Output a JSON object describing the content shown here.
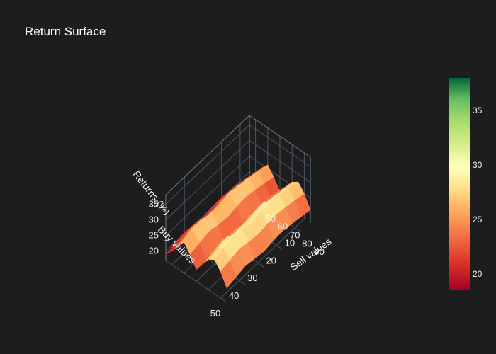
{
  "chart_data": {
    "type": "surface",
    "title": "Return Surface",
    "x_axis": {
      "title": "Buy values",
      "ticks": [
        10,
        20,
        30,
        40,
        50
      ],
      "range": [
        5,
        50
      ]
    },
    "y_axis": {
      "title": "Sell values",
      "ticks": [
        50,
        60,
        70,
        80,
        90
      ],
      "range": [
        45,
        95
      ]
    },
    "z_axis": {
      "title": "Returns (%)",
      "ticks": [
        20,
        25,
        30,
        35
      ],
      "range": [
        17,
        38
      ]
    },
    "surface": {
      "buy_values": [
        5,
        10,
        15,
        20,
        25,
        30,
        35,
        40,
        45,
        50
      ],
      "sell_values": [
        45,
        50,
        55,
        60,
        65,
        70,
        75,
        80,
        85,
        90,
        95
      ],
      "z": [
        [
          18.6,
          20.8,
          23.9,
          26.2,
          23.6,
          20.4,
          23.2,
          26.0,
          27.4,
          25.0,
          21.2
        ],
        [
          19.2,
          21.5,
          24.6,
          27.0,
          24.4,
          21.0,
          24.0,
          26.8,
          28.1,
          25.6,
          21.8
        ],
        [
          19.8,
          22.3,
          25.4,
          27.8,
          25.1,
          21.6,
          24.8,
          27.6,
          28.9,
          26.3,
          22.4
        ],
        [
          20.3,
          22.9,
          26.0,
          28.3,
          25.7,
          22.1,
          25.3,
          28.2,
          29.4,
          26.8,
          22.9
        ],
        [
          20.0,
          22.6,
          25.7,
          28.0,
          25.3,
          21.8,
          25.0,
          27.9,
          29.1,
          26.5,
          22.6
        ],
        [
          19.4,
          21.9,
          25.0,
          27.3,
          24.7,
          21.2,
          24.3,
          27.2,
          28.4,
          25.9,
          22.0
        ],
        [
          19.9,
          22.4,
          25.5,
          27.9,
          25.2,
          21.7,
          24.9,
          27.8,
          29.0,
          26.4,
          22.5
        ],
        [
          20.4,
          23.0,
          26.1,
          28.5,
          25.8,
          22.2,
          25.4,
          28.3,
          29.6,
          27.0,
          23.0
        ],
        [
          19.7,
          22.2,
          25.3,
          27.7,
          25.0,
          21.5,
          24.7,
          27.6,
          28.8,
          26.2,
          22.3
        ],
        [
          18.9,
          21.3,
          24.4,
          26.8,
          24.2,
          20.8,
          23.8,
          26.7,
          27.9,
          25.4,
          21.5
        ]
      ]
    },
    "colorscale": "RdYlGn",
    "colorbar": {
      "ticks": [
        20,
        25,
        30,
        35
      ],
      "range": [
        18.5,
        38
      ]
    },
    "colors": {
      "background": "#1d1d1d",
      "grid": "#4a5568",
      "scale_low": "#a50026",
      "scale_mid": "#ffffbf",
      "scale_high": "#006837"
    }
  }
}
